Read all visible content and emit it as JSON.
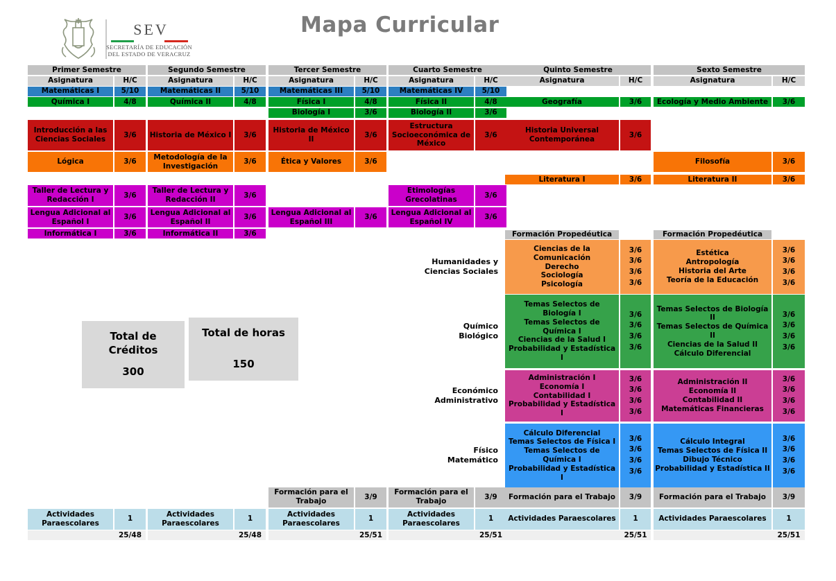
{
  "header": {
    "title": "Mapa Curricular",
    "logo": {
      "acronym": "SEV",
      "secretariat_line1": "SECRETARÍA DE EDUCACIÓN",
      "secretariat_line2": "DEL ESTADO DE VERACRUZ"
    }
  },
  "palette": {
    "header_gray": "#c3c3c3",
    "subheader_gray": "#d2d2d2",
    "blue": "#2d7fc1",
    "green": "#00a029",
    "red": "#c41313",
    "orange": "#f87406",
    "magenta": "#ca00ca",
    "prop_orange": "#f79a4b",
    "prop_green": "#36a24a",
    "prop_pink": "#cb3e94",
    "prop_blue": "#3598f4",
    "pale_blue": "#bcdde9",
    "total_gray": "#efefef",
    "box_gray": "#d9d9d9",
    "title_gray": "#7b7b7b",
    "flag_green": "#1e9e48",
    "flag_red": "#d5281e",
    "logo_text": "#4f4f4f",
    "crest": "#8d977f"
  },
  "semesters": [
    "Primer Semestre",
    "Segundo Semestre",
    "Tercer Semestre",
    "Cuarto Semestre",
    "Quinto Semestre",
    "Sexto Semestre"
  ],
  "column_headers": {
    "subject": "Asignatura",
    "hours": "H/C"
  },
  "prop_header_label": "Formación Propedéutica",
  "group_labels": [
    {
      "text": "Humanidades y\nCiencias Sociales",
      "band": "prop1"
    },
    {
      "text": "Químico\nBiológico",
      "band": "prop2"
    },
    {
      "text": "Económico\nAdministrativo",
      "band": "prop3"
    },
    {
      "text": "Físico\nMatemático",
      "band": "prop4"
    }
  ],
  "totals": {
    "credits_label": "Total de\nCréditos",
    "credits_value": "300",
    "hours_label": "Total de horas",
    "hours_value": "150"
  },
  "cells": [
    {
      "sem": 1,
      "band": "math",
      "label": "Matemáticas I",
      "hc": "5/10",
      "color": "blue"
    },
    {
      "sem": 2,
      "band": "math",
      "label": "Matemáticas II",
      "hc": "5/10",
      "color": "blue"
    },
    {
      "sem": 3,
      "band": "math",
      "label": "Matemáticas III",
      "hc": "5/10",
      "color": "blue"
    },
    {
      "sem": 4,
      "band": "math",
      "label": "Matemáticas IV",
      "hc": "5/10",
      "color": "blue"
    },
    {
      "sem": 1,
      "band": "sci1",
      "label": "Química I",
      "hc": "4/8",
      "color": "green"
    },
    {
      "sem": 2,
      "band": "sci1",
      "label": "Química II",
      "hc": "4/8",
      "color": "green"
    },
    {
      "sem": 3,
      "band": "sci1",
      "label": "Física I",
      "hc": "4/8",
      "color": "green"
    },
    {
      "sem": 4,
      "band": "sci1",
      "label": "Física II",
      "hc": "4/8",
      "color": "green"
    },
    {
      "sem": 5,
      "band": "sci1",
      "label": "Geografía",
      "hc": "3/6",
      "color": "green"
    },
    {
      "sem": 6,
      "band": "sci1",
      "label": "Ecología y Medio Ambiente",
      "hc": "3/6",
      "color": "green"
    },
    {
      "sem": 3,
      "band": "sci2",
      "label": "Biología I",
      "hc": "3/6",
      "color": "green"
    },
    {
      "sem": 4,
      "band": "sci2",
      "label": "Biología II",
      "hc": "3/6",
      "color": "green"
    },
    {
      "sem": 1,
      "band": "social",
      "label": "Introducción a las Ciencias Sociales",
      "hc": "3/6",
      "color": "red"
    },
    {
      "sem": 2,
      "band": "social",
      "label": "Historia de México I",
      "hc": "3/6",
      "color": "red"
    },
    {
      "sem": 3,
      "band": "social",
      "label": "Historia de México II",
      "hc": "3/6",
      "color": "red"
    },
    {
      "sem": 4,
      "band": "social",
      "label": "Estructura Socioeconómica de México",
      "hc": "3/6",
      "color": "red"
    },
    {
      "sem": 5,
      "band": "social",
      "label": "Historia Universal Contemporánea",
      "hc": "3/6",
      "color": "red"
    },
    {
      "sem": 1,
      "band": "philo",
      "label": "Lógica",
      "hc": "3/6",
      "color": "orange"
    },
    {
      "sem": 2,
      "band": "philo",
      "label": "Metodología de la Investigación",
      "hc": "3/6",
      "color": "orange"
    },
    {
      "sem": 3,
      "band": "philo",
      "label": "Ética y Valores",
      "hc": "3/6",
      "color": "orange"
    },
    {
      "sem": 6,
      "band": "philo",
      "label": "Filosofía",
      "hc": "3/6",
      "color": "orange"
    },
    {
      "sem": 5,
      "band": "lit",
      "label": "Literatura I",
      "hc": "3/6",
      "color": "orange"
    },
    {
      "sem": 6,
      "band": "lit",
      "label": "Literatura II",
      "hc": "3/6",
      "color": "orange"
    },
    {
      "sem": 1,
      "band": "taller",
      "label": "Taller de Lectura y Redacción I",
      "hc": "3/6",
      "color": "magenta"
    },
    {
      "sem": 2,
      "band": "taller",
      "label": "Taller de Lectura y Redacción II",
      "hc": "3/6",
      "color": "magenta"
    },
    {
      "sem": 4,
      "band": "taller",
      "label": "Etimologías Grecolatinas",
      "hc": "3/6",
      "color": "magenta"
    },
    {
      "sem": 1,
      "band": "lengua",
      "label": "Lengua Adicional al Español I",
      "hc": "3/6",
      "color": "magenta"
    },
    {
      "sem": 2,
      "band": "lengua",
      "label": "Lengua Adicional al Español II",
      "hc": "3/6",
      "color": "magenta"
    },
    {
      "sem": 3,
      "band": "lengua",
      "label": "Lengua Adicional al Español III",
      "hc": "3/6",
      "color": "magenta"
    },
    {
      "sem": 4,
      "band": "lengua",
      "label": "Lengua Adicional al Español IV",
      "hc": "3/6",
      "color": "magenta"
    },
    {
      "sem": 1,
      "band": "info",
      "label": "Informática I",
      "hc": "3/6",
      "color": "magenta"
    },
    {
      "sem": 2,
      "band": "info",
      "label": "Informática II",
      "hc": "3/6",
      "color": "magenta"
    },
    {
      "sem": 5,
      "band": "propHeader",
      "label": "Formación Propedéutica",
      "hc": null,
      "color": "header_gray"
    },
    {
      "sem": 6,
      "band": "propHeader",
      "label": "Formación Propedéutica",
      "hc": null,
      "color": "header_gray"
    },
    {
      "sem": 5,
      "band": "prop1",
      "label": [
        "Ciencias de la Comunicación",
        "Derecho",
        "Sociología",
        "Psicología"
      ],
      "hc": [
        "3/6",
        "3/6",
        "3/6",
        "3/6"
      ],
      "color": "prop_orange"
    },
    {
      "sem": 6,
      "band": "prop1",
      "label": [
        "Estética",
        "Antropología",
        "Historia del Arte",
        "Teoría de la Educación"
      ],
      "hc": [
        "3/6",
        "3/6",
        "3/6",
        "3/6"
      ],
      "color": "prop_orange"
    },
    {
      "sem": 5,
      "band": "prop2",
      "label": [
        "Temas Selectos de Biología I",
        "Temas Selectos de Química I",
        "Ciencias de la Salud I",
        "Probabilidad y Estadística I"
      ],
      "hc": [
        "3/6",
        "3/6",
        "3/6",
        "3/6"
      ],
      "color": "prop_green"
    },
    {
      "sem": 6,
      "band": "prop2",
      "label": [
        "Temas Selectos de Biología II",
        "Temas Selectos de Química II",
        "Ciencias de la Salud II",
        "Cálculo Diferencial"
      ],
      "hc": [
        "3/6",
        "3/6",
        "3/6",
        "3/6"
      ],
      "color": "prop_green"
    },
    {
      "sem": 5,
      "band": "prop3",
      "label": [
        "Administración I",
        "Economía I",
        "Contabilidad I",
        "Probabilidad y Estadística I"
      ],
      "hc": [
        "3/6",
        "3/6",
        "3/6",
        "3/6"
      ],
      "color": "prop_pink"
    },
    {
      "sem": 6,
      "band": "prop3",
      "label": [
        "Administración II",
        "Economía II",
        "Contabilidad II",
        "Matemáticas Financieras"
      ],
      "hc": [
        "3/6",
        "3/6",
        "3/6",
        "3/6"
      ],
      "color": "prop_pink"
    },
    {
      "sem": 5,
      "band": "prop4",
      "label": [
        "Cálculo Diferencial",
        "Temas Selectos de Física I",
        "Temas Selectos de Química I",
        "Probabilidad y Estadística I"
      ],
      "hc": [
        "3/6",
        "3/6",
        "3/6",
        "3/6"
      ],
      "color": "prop_blue"
    },
    {
      "sem": 6,
      "band": "prop4",
      "label": [
        "Cálculo Integral",
        "Temas Selectos de Física II",
        "Dibujo Técnico",
        "Probabilidad y Estadística II"
      ],
      "hc": [
        "3/6",
        "3/6",
        "3/6",
        "3/6"
      ],
      "color": "prop_blue"
    },
    {
      "sem": 3,
      "band": "trabajo",
      "label": "Formación para el Trabajo",
      "hc": "3/9",
      "color": "header_gray"
    },
    {
      "sem": 4,
      "band": "trabajo",
      "label": "Formación para el Trabajo",
      "hc": "3/9",
      "color": "header_gray"
    },
    {
      "sem": 5,
      "band": "trabajo",
      "label": "Formación para el Trabajo",
      "hc": "3/9",
      "color": "header_gray"
    },
    {
      "sem": 6,
      "band": "trabajo",
      "label": "Formación para el Trabajo",
      "hc": "3/9",
      "color": "header_gray"
    },
    {
      "sem": 1,
      "band": "para",
      "label": "Actividades Paraescolares",
      "hc": "1",
      "color": "pale_blue"
    },
    {
      "sem": 2,
      "band": "para",
      "label": "Actividades Paraescolares",
      "hc": "1",
      "color": "pale_blue"
    },
    {
      "sem": 3,
      "band": "para",
      "label": "Actividades Paraescolares",
      "hc": "1",
      "color": "pale_blue"
    },
    {
      "sem": 4,
      "band": "para",
      "label": "Actividades Paraescolares",
      "hc": "1",
      "color": "pale_blue"
    },
    {
      "sem": 5,
      "band": "para",
      "label": "Actividades Paraescolares",
      "hc": "1",
      "color": "pale_blue"
    },
    {
      "sem": 6,
      "band": "para",
      "label": "Actividades Paraescolares",
      "hc": "1",
      "color": "pale_blue"
    },
    {
      "sem": 1,
      "band": "total",
      "label": null,
      "hc": "25/48",
      "color": "total_gray"
    },
    {
      "sem": 2,
      "band": "total",
      "label": null,
      "hc": "25/48",
      "color": "total_gray"
    },
    {
      "sem": 3,
      "band": "total",
      "label": null,
      "hc": "25/51",
      "color": "total_gray"
    },
    {
      "sem": 4,
      "band": "total",
      "label": null,
      "hc": "25/51",
      "color": "total_gray"
    },
    {
      "sem": 5,
      "band": "total",
      "label": null,
      "hc": "25/51",
      "color": "total_gray"
    },
    {
      "sem": 6,
      "band": "total",
      "label": null,
      "hc": "25/51",
      "color": "total_gray"
    }
  ]
}
